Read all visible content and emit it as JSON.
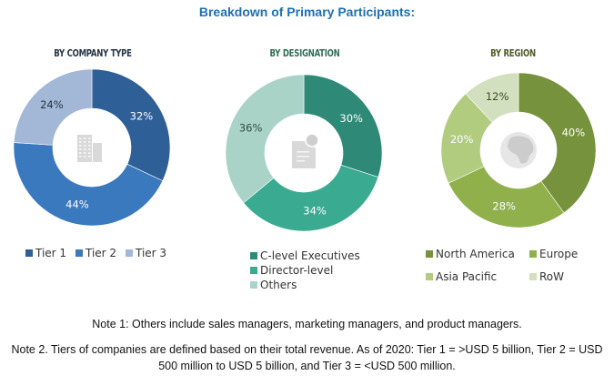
{
  "title": "Breakdown of Primary Participants:",
  "chart_data": [
    {
      "type": "pie",
      "donut": true,
      "title": "BY COMPANY TYPE",
      "center_icon": "building-icon",
      "categories": [
        "Tier 1",
        "Tier 2",
        "Tier 3"
      ],
      "values": [
        32,
        44,
        24
      ],
      "labels": [
        "32%",
        "44%",
        "24%"
      ],
      "colors": [
        "#2e5f97",
        "#3a79bd",
        "#a3b7d7"
      ],
      "label_colors": [
        "#ffffff",
        "#ffffff",
        "#243447"
      ],
      "legend_position": "bottom"
    },
    {
      "type": "pie",
      "donut": true,
      "title": "BY DESIGNATION",
      "center_icon": "document-icon",
      "categories": [
        "C-level Executives",
        "Director-level",
        "Others"
      ],
      "values": [
        30,
        34,
        36
      ],
      "labels": [
        "30%",
        "34%",
        "36%"
      ],
      "colors": [
        "#2e8a77",
        "#3aaa91",
        "#a9d3c7"
      ],
      "label_colors": [
        "#ffffff",
        "#ffffff",
        "#2f4f47"
      ],
      "legend_position": "bottom"
    },
    {
      "type": "pie",
      "donut": true,
      "title": "BY REGION",
      "center_icon": "globe-icon",
      "categories": [
        "North America",
        "Europe",
        "Asia Pacific",
        "RoW"
      ],
      "values": [
        40,
        28,
        20,
        12
      ],
      "labels": [
        "40%",
        "28%",
        "20%",
        "12%"
      ],
      "colors": [
        "#76923c",
        "#8fb04a",
        "#b1cb7f",
        "#d3e0bf"
      ],
      "label_colors": [
        "#ffffff",
        "#ffffff",
        "#ffffff",
        "#3d4a25"
      ],
      "legend_position": "bottom"
    }
  ],
  "notes": [
    "Note 1: Others include sales managers, marketing managers, and product managers.",
    "Note 2. Tiers of companies are defined based on their total revenue. As of 2020: Tier 1 = >USD 5 billion, Tier 2 = USD 500 million to USD 5 billion, and Tier 3 = <USD 500 million."
  ]
}
